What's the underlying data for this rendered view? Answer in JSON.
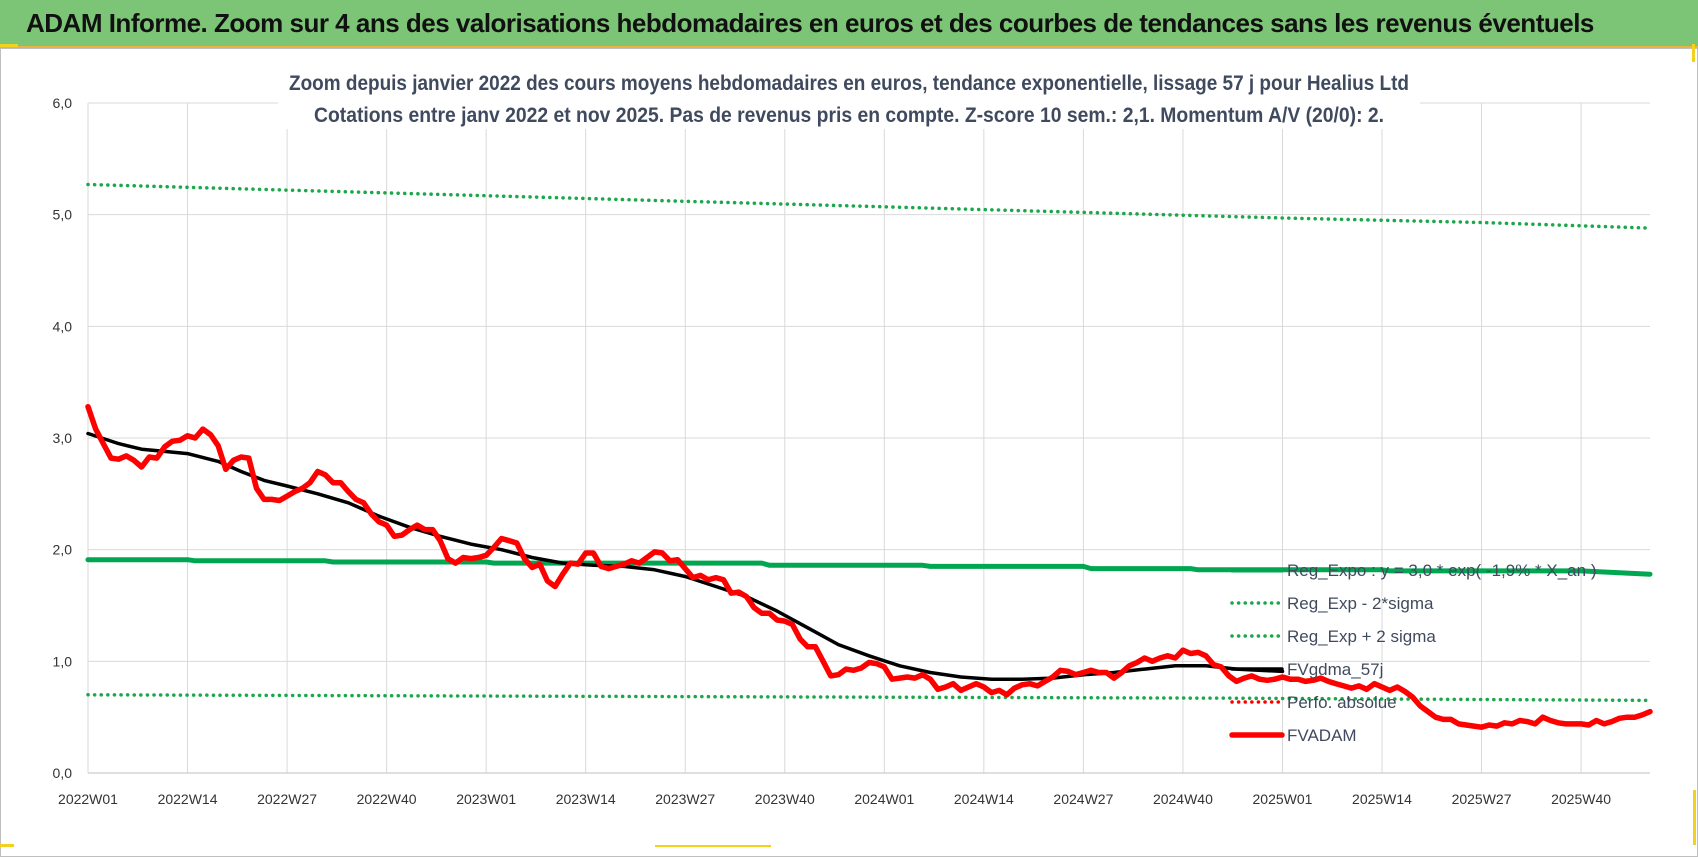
{
  "header": {
    "title": "ADAM Informe. Zoom sur 4 ans des valorisations hebdomadaires en euros et des courbes de tendances sans les revenus éventuels"
  },
  "colors": {
    "banner": "#7cc576",
    "regression": "#00a650",
    "bands": "#1aa84a",
    "smoothed": "#000000",
    "price": "#ff0000",
    "perf": "#ff0000"
  },
  "chart_data": {
    "type": "line",
    "title_lines": [
      "Zoom depuis janvier 2022 des cours moyens hebdomadaires en euros, tendance exponentielle, lissage 57 j pour Healius Ltd",
      "Cotations entre janv 2022 et nov 2025. Pas de revenus pris en compte. Z-score 10 sem.: 2,1. Momentum A/V (20/0): 2."
    ],
    "x_ticks": [
      "2022W01",
      "2022W14",
      "2022W27",
      "2022W40",
      "2023W01",
      "2023W14",
      "2023W27",
      "2023W40",
      "2024W01",
      "2024W14",
      "2024W27",
      "2024W40",
      "2025W01",
      "2025W14",
      "2025W27",
      "2025W40"
    ],
    "x_tick_week_index": [
      0,
      13,
      26,
      39,
      52,
      65,
      78,
      91,
      104,
      117,
      130,
      143,
      156,
      169,
      182,
      195
    ],
    "x_range_weeks": [
      0,
      204
    ],
    "ylim": [
      0,
      6
    ],
    "y_ticks": [
      "0,0",
      "1,0",
      "2,0",
      "3,0",
      "4,0",
      "5,0",
      "6,0"
    ],
    "grid": true,
    "legend_position": "inside-right",
    "series": [
      {
        "name": "Reg_Expo : y = 3,0 * exp( -1,9% * X_an )",
        "style": "solid-thick",
        "color": "#00a650",
        "points": [
          [
            0,
            1.91
          ],
          [
            13,
            1.91
          ],
          [
            14,
            1.9
          ],
          [
            31,
            1.9
          ],
          [
            32,
            1.89
          ],
          [
            52,
            1.89
          ],
          [
            53,
            1.88
          ],
          [
            88,
            1.88
          ],
          [
            89,
            1.86
          ],
          [
            109,
            1.86
          ],
          [
            110,
            1.85
          ],
          [
            130,
            1.85
          ],
          [
            131,
            1.83
          ],
          [
            144,
            1.83
          ],
          [
            145,
            1.82
          ],
          [
            169,
            1.82
          ],
          [
            170,
            1.81
          ],
          [
            195,
            1.81
          ],
          [
            204,
            1.78
          ]
        ]
      },
      {
        "name": "Reg_Exp - 2*sigma",
        "style": "dotted",
        "color": "#1aa84a",
        "points": [
          [
            0,
            0.7
          ],
          [
            50,
            0.69
          ],
          [
            100,
            0.68
          ],
          [
            150,
            0.67
          ],
          [
            204,
            0.65
          ]
        ]
      },
      {
        "name": "Reg_Exp + 2 sigma",
        "style": "dotted",
        "color": "#1aa84a",
        "points": [
          [
            0,
            5.27
          ],
          [
            26,
            5.22
          ],
          [
            52,
            5.17
          ],
          [
            78,
            5.12
          ],
          [
            104,
            5.07
          ],
          [
            130,
            5.02
          ],
          [
            156,
            4.97
          ],
          [
            182,
            4.93
          ],
          [
            204,
            4.88
          ]
        ]
      },
      {
        "name": "FVgdma_57j",
        "style": "solid",
        "color": "#000000",
        "points": [
          [
            0,
            3.04
          ],
          [
            4,
            2.95
          ],
          [
            7,
            2.9
          ],
          [
            10,
            2.88
          ],
          [
            13,
            2.86
          ],
          [
            17,
            2.79
          ],
          [
            20,
            2.7
          ],
          [
            23,
            2.62
          ],
          [
            26,
            2.57
          ],
          [
            30,
            2.5
          ],
          [
            34,
            2.42
          ],
          [
            38,
            2.3
          ],
          [
            42,
            2.2
          ],
          [
            46,
            2.12
          ],
          [
            50,
            2.05
          ],
          [
            54,
            2.0
          ],
          [
            58,
            1.93
          ],
          [
            62,
            1.88
          ],
          [
            66,
            1.86
          ],
          [
            70,
            1.85
          ],
          [
            74,
            1.82
          ],
          [
            78,
            1.76
          ],
          [
            82,
            1.67
          ],
          [
            86,
            1.58
          ],
          [
            90,
            1.45
          ],
          [
            94,
            1.3
          ],
          [
            98,
            1.15
          ],
          [
            102,
            1.05
          ],
          [
            106,
            0.96
          ],
          [
            110,
            0.9
          ],
          [
            114,
            0.86
          ],
          [
            118,
            0.84
          ],
          [
            122,
            0.84
          ],
          [
            126,
            0.85
          ],
          [
            130,
            0.88
          ],
          [
            134,
            0.9
          ],
          [
            138,
            0.93
          ],
          [
            142,
            0.96
          ],
          [
            146,
            0.96
          ],
          [
            150,
            0.93
          ],
          [
            156,
            0.91
          ]
        ]
      },
      {
        "name": "Perfo. absolue",
        "style": "dotted",
        "color": "#ff0000",
        "points": []
      },
      {
        "name": "FVADAM",
        "style": "solid-thicker",
        "color": "#ff0000",
        "points": [
          [
            0,
            3.28
          ],
          [
            1,
            3.08
          ],
          [
            2,
            2.95
          ],
          [
            3,
            2.82
          ],
          [
            4,
            2.81
          ],
          [
            5,
            2.84
          ],
          [
            6,
            2.8
          ],
          [
            7,
            2.74
          ],
          [
            8,
            2.83
          ],
          [
            9,
            2.82
          ],
          [
            10,
            2.92
          ],
          [
            11,
            2.97
          ],
          [
            12,
            2.98
          ],
          [
            13,
            3.02
          ],
          [
            14,
            3.0
          ],
          [
            15,
            3.08
          ],
          [
            16,
            3.03
          ],
          [
            17,
            2.93
          ],
          [
            18,
            2.72
          ],
          [
            19,
            2.8
          ],
          [
            20,
            2.83
          ],
          [
            21,
            2.82
          ],
          [
            22,
            2.55
          ],
          [
            23,
            2.45
          ],
          [
            24,
            2.45
          ],
          [
            25,
            2.44
          ],
          [
            26,
            2.48
          ],
          [
            27,
            2.52
          ],
          [
            28,
            2.55
          ],
          [
            29,
            2.6
          ],
          [
            30,
            2.7
          ],
          [
            31,
            2.67
          ],
          [
            32,
            2.6
          ],
          [
            33,
            2.6
          ],
          [
            34,
            2.52
          ],
          [
            35,
            2.45
          ],
          [
            36,
            2.42
          ],
          [
            37,
            2.32
          ],
          [
            38,
            2.25
          ],
          [
            39,
            2.22
          ],
          [
            40,
            2.12
          ],
          [
            41,
            2.13
          ],
          [
            42,
            2.18
          ],
          [
            43,
            2.22
          ],
          [
            44,
            2.18
          ],
          [
            45,
            2.18
          ],
          [
            46,
            2.08
          ],
          [
            47,
            1.92
          ],
          [
            48,
            1.88
          ],
          [
            49,
            1.93
          ],
          [
            50,
            1.92
          ],
          [
            51,
            1.93
          ],
          [
            52,
            1.95
          ],
          [
            53,
            2.02
          ],
          [
            54,
            2.1
          ],
          [
            55,
            2.08
          ],
          [
            56,
            2.06
          ],
          [
            57,
            1.92
          ],
          [
            58,
            1.84
          ],
          [
            59,
            1.87
          ],
          [
            60,
            1.72
          ],
          [
            61,
            1.67
          ],
          [
            62,
            1.78
          ],
          [
            63,
            1.88
          ],
          [
            64,
            1.87
          ],
          [
            65,
            1.97
          ],
          [
            66,
            1.97
          ],
          [
            67,
            1.85
          ],
          [
            68,
            1.83
          ],
          [
            69,
            1.85
          ],
          [
            70,
            1.87
          ],
          [
            71,
            1.9
          ],
          [
            72,
            1.88
          ],
          [
            73,
            1.93
          ],
          [
            74,
            1.98
          ],
          [
            75,
            1.97
          ],
          [
            76,
            1.9
          ],
          [
            77,
            1.91
          ],
          [
            78,
            1.83
          ],
          [
            79,
            1.75
          ],
          [
            80,
            1.77
          ],
          [
            81,
            1.73
          ],
          [
            82,
            1.75
          ],
          [
            83,
            1.73
          ],
          [
            84,
            1.61
          ],
          [
            85,
            1.62
          ],
          [
            86,
            1.58
          ],
          [
            87,
            1.48
          ],
          [
            88,
            1.43
          ],
          [
            89,
            1.43
          ],
          [
            90,
            1.37
          ],
          [
            91,
            1.36
          ],
          [
            92,
            1.33
          ],
          [
            93,
            1.2
          ],
          [
            94,
            1.13
          ],
          [
            95,
            1.13
          ],
          [
            96,
            1.0
          ],
          [
            97,
            0.87
          ],
          [
            98,
            0.88
          ],
          [
            99,
            0.93
          ],
          [
            100,
            0.92
          ],
          [
            101,
            0.94
          ],
          [
            102,
            0.99
          ],
          [
            103,
            0.98
          ],
          [
            104,
            0.95
          ],
          [
            105,
            0.84
          ],
          [
            106,
            0.85
          ],
          [
            107,
            0.86
          ],
          [
            108,
            0.85
          ],
          [
            109,
            0.88
          ],
          [
            110,
            0.84
          ],
          [
            111,
            0.75
          ],
          [
            112,
            0.77
          ],
          [
            113,
            0.8
          ],
          [
            114,
            0.74
          ],
          [
            115,
            0.77
          ],
          [
            116,
            0.8
          ],
          [
            117,
            0.77
          ],
          [
            118,
            0.72
          ],
          [
            119,
            0.74
          ],
          [
            120,
            0.7
          ],
          [
            121,
            0.76
          ],
          [
            122,
            0.79
          ],
          [
            123,
            0.8
          ],
          [
            124,
            0.78
          ],
          [
            125,
            0.82
          ],
          [
            126,
            0.86
          ],
          [
            127,
            0.92
          ],
          [
            128,
            0.91
          ],
          [
            129,
            0.88
          ],
          [
            130,
            0.9
          ],
          [
            131,
            0.92
          ],
          [
            132,
            0.9
          ],
          [
            133,
            0.9
          ],
          [
            134,
            0.85
          ],
          [
            135,
            0.9
          ],
          [
            136,
            0.96
          ],
          [
            137,
            0.99
          ],
          [
            138,
            1.03
          ],
          [
            139,
            1.0
          ],
          [
            140,
            1.03
          ],
          [
            141,
            1.05
          ],
          [
            142,
            1.03
          ],
          [
            143,
            1.1
          ],
          [
            144,
            1.07
          ],
          [
            145,
            1.08
          ],
          [
            146,
            1.05
          ],
          [
            147,
            0.97
          ],
          [
            148,
            0.95
          ],
          [
            149,
            0.87
          ],
          [
            150,
            0.82
          ],
          [
            151,
            0.85
          ],
          [
            152,
            0.87
          ],
          [
            153,
            0.84
          ],
          [
            154,
            0.83
          ],
          [
            155,
            0.84
          ],
          [
            156,
            0.86
          ],
          [
            157,
            0.84
          ],
          [
            158,
            0.84
          ],
          [
            159,
            0.82
          ],
          [
            160,
            0.83
          ],
          [
            161,
            0.85
          ],
          [
            162,
            0.82
          ],
          [
            163,
            0.8
          ],
          [
            164,
            0.78
          ],
          [
            165,
            0.76
          ],
          [
            166,
            0.78
          ],
          [
            167,
            0.75
          ],
          [
            168,
            0.8
          ],
          [
            169,
            0.77
          ],
          [
            170,
            0.74
          ],
          [
            171,
            0.77
          ],
          [
            172,
            0.73
          ],
          [
            173,
            0.68
          ],
          [
            174,
            0.6
          ],
          [
            175,
            0.55
          ],
          [
            176,
            0.5
          ],
          [
            177,
            0.48
          ],
          [
            178,
            0.48
          ],
          [
            179,
            0.44
          ],
          [
            180,
            0.43
          ],
          [
            181,
            0.42
          ],
          [
            182,
            0.41
          ],
          [
            183,
            0.43
          ],
          [
            184,
            0.42
          ],
          [
            185,
            0.45
          ],
          [
            186,
            0.44
          ],
          [
            187,
            0.47
          ],
          [
            188,
            0.46
          ],
          [
            189,
            0.44
          ],
          [
            190,
            0.5
          ],
          [
            191,
            0.47
          ],
          [
            192,
            0.45
          ],
          [
            193,
            0.44
          ],
          [
            194,
            0.44
          ],
          [
            195,
            0.44
          ],
          [
            196,
            0.43
          ],
          [
            197,
            0.47
          ],
          [
            198,
            0.44
          ],
          [
            199,
            0.46
          ],
          [
            200,
            0.49
          ],
          [
            201,
            0.5
          ],
          [
            202,
            0.5
          ],
          [
            203,
            0.52
          ],
          [
            204,
            0.55
          ]
        ]
      }
    ]
  }
}
